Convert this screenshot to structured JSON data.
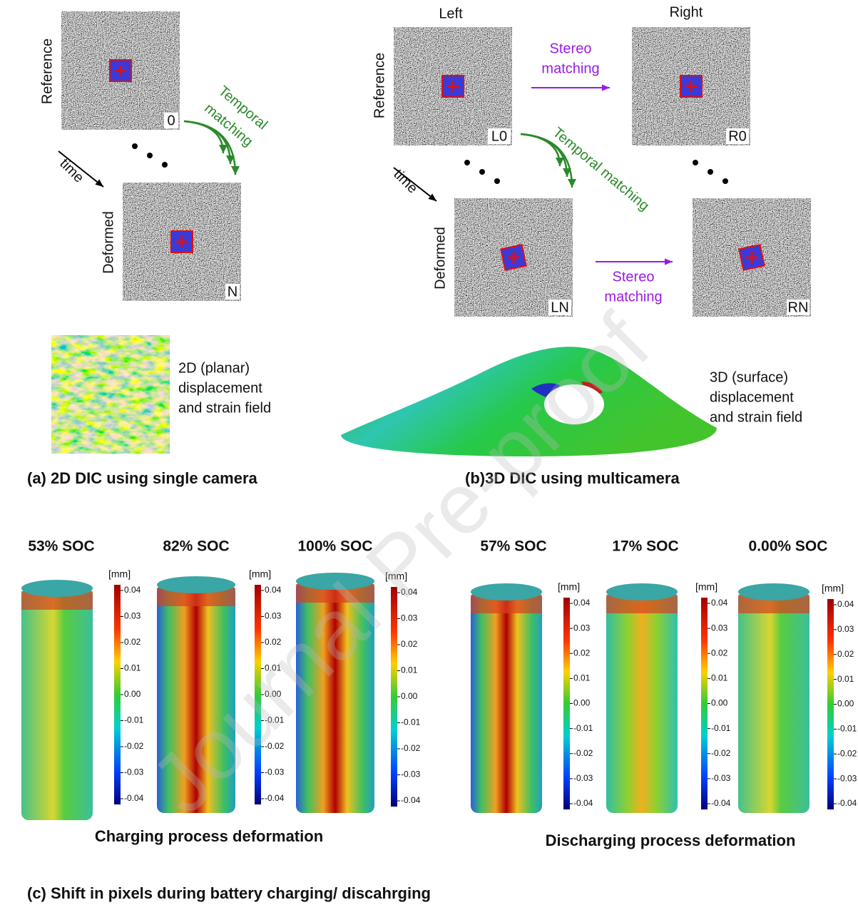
{
  "panel_a": {
    "reference_label": "Reference",
    "deformed_label": "Deformed",
    "frame_ref": "0",
    "frame_def": "N",
    "time_label": "time",
    "temporal_label": [
      "Temporal",
      "matching"
    ],
    "field_label": [
      "2D (planar)",
      "displacement",
      "and strain field"
    ],
    "caption": "(a) 2D DIC using single camera"
  },
  "panel_b": {
    "left_label": "Left",
    "right_label": "Right",
    "reference_label": "Reference",
    "deformed_label": "Deformed",
    "frames": [
      "L0",
      "R0",
      "LN",
      "RN"
    ],
    "time_label": "time",
    "stereo_label": [
      "Stereo",
      "matching"
    ],
    "temporal_label": "Temporal matching",
    "field_label": [
      "3D (surface)",
      "displacement",
      "and strain field"
    ],
    "caption": "(b)3D DIC using multicamera"
  },
  "panel_c": {
    "charging_soc": [
      "53% SOC",
      "82% SOC",
      "100% SOC"
    ],
    "charging_caption": "Charging process deformation",
    "discharging_soc": [
      "57% SOC",
      "17% SOC",
      "0.00% SOC"
    ],
    "discharging_caption": "Discharging process deformation",
    "unit": "[mm]",
    "colorbar_ticks": [
      "0.04",
      "0.03",
      "0.02",
      "0.01",
      "0.00",
      "-0.01",
      "-0.02",
      "-0.03",
      "-0.04"
    ],
    "caption": "(c) Shift in pixels during battery charging/ discahrging"
  },
  "watermark": "Journal Pre-proof"
}
